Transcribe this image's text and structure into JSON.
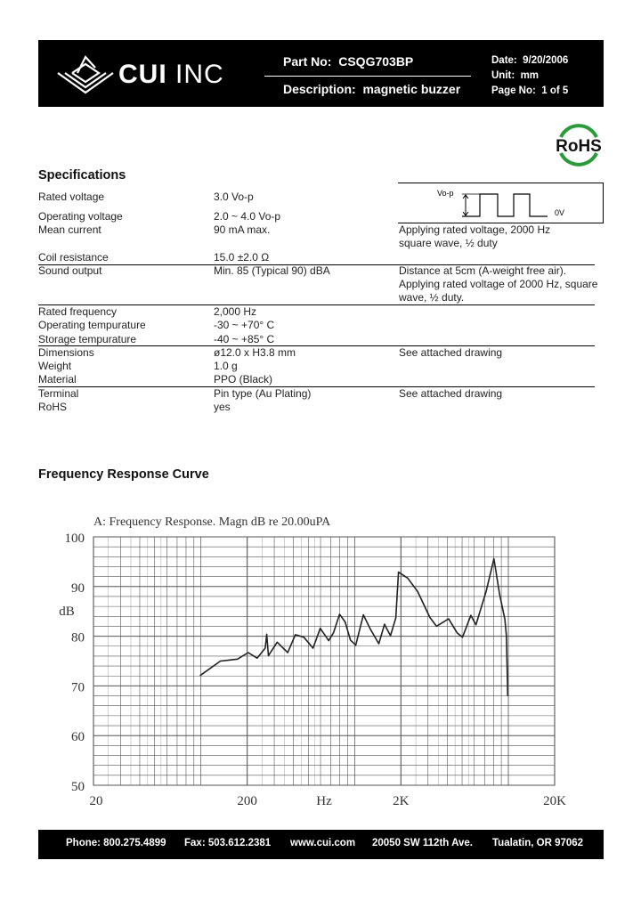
{
  "header": {
    "brand_bold": "CUI",
    "brand_light": "INC",
    "part_no_label": "Part No:",
    "part_no": "CSQG703BP",
    "description_label": "Description:",
    "description": "magnetic buzzer",
    "date_label": "Date:",
    "date": "9/20/2006",
    "unit_label": "Unit:",
    "unit": "mm",
    "page_label": "Page No:",
    "page": "1 of 5"
  },
  "rohs_badge": "RoHS",
  "specs": {
    "title": "Specifications",
    "rows": [
      {
        "name": "Rated voltage",
        "value": "3.0 Vo-p",
        "note": ""
      },
      {
        "name": "Operating voltage",
        "value": "2.0 ~ 4.0 Vo-p",
        "note": ""
      },
      {
        "name": "Mean current",
        "value": "90 mA max.",
        "note": "Applying rated voltage, 2000 Hz",
        "note2": "square wave, ½ duty"
      },
      {
        "name": "Coil resistance",
        "value": "15.0 ±2.0 Ω",
        "note": ""
      },
      {
        "name": "Sound output",
        "value": "Min. 85 (Typical 90) dBA",
        "note": "Distance at 5cm (A-weight free air).",
        "note2": "Applying rated voltage of 2000 Hz, square",
        "note3": "wave, ½ duty."
      },
      {
        "name": "Rated frequency",
        "value": "2,000 Hz",
        "note": ""
      },
      {
        "name": "Operating tempurature",
        "value": "-30 ~ +70° C",
        "note": ""
      },
      {
        "name": "Storage tempurature",
        "value": "-40 ~ +85° C",
        "note": ""
      },
      {
        "name": "Dimensions",
        "value": "ø12.0 x H3.8 mm",
        "note": "See attached drawing"
      },
      {
        "name": "Weight",
        "value": "1.0 g",
        "note": ""
      },
      {
        "name": "Material",
        "value": "PPO (Black)",
        "note": ""
      },
      {
        "name": "Terminal",
        "value": "Pin type (Au Plating)",
        "note": "See attached drawing"
      },
      {
        "name": "RoHS",
        "value": "yes",
        "note": ""
      }
    ],
    "waveform": {
      "top_label": "Vo-p",
      "bottom_label": "0V"
    }
  },
  "frequency_section_title": "Frequency Response Curve",
  "chart_data": {
    "type": "line",
    "title": "A: Frequency Response. Magn dB re 20.00uPA",
    "xlabel": "Hz",
    "ylabel": "dB",
    "xscale": "log",
    "xlim": [
      20,
      20000
    ],
    "ylim": [
      50,
      100
    ],
    "x_ticks": [
      {
        "v": 20,
        "label": "20"
      },
      {
        "v": 200,
        "label": "200"
      },
      {
        "v": 2000,
        "label": "2K"
      },
      {
        "v": 20000,
        "label": "20K"
      }
    ],
    "y_ticks": [
      50,
      60,
      70,
      80,
      90,
      100
    ],
    "grid": true,
    "series": [
      {
        "x": [
          99,
          134,
          173,
          203,
          232,
          262,
          268,
          275,
          313,
          367,
          411,
          467,
          536,
          597,
          678,
          728,
          798,
          866,
          940,
          1017,
          1141,
          1267,
          1436,
          1565,
          1710,
          1853,
          1929,
          2213,
          2570,
          3084,
          3410,
          4086,
          4640,
          5030,
          5700,
          6150,
          7165,
          8060,
          8770,
          9490,
          9710,
          9900
        ],
        "y": [
          72.1,
          75.0,
          75.4,
          76.7,
          75.6,
          77.6,
          80.4,
          76.1,
          78.8,
          76.7,
          80.3,
          79.8,
          77.6,
          81.6,
          79.1,
          80.7,
          84.4,
          82.9,
          79.2,
          78.2,
          84.3,
          81.4,
          78.5,
          82.4,
          80.1,
          83.7,
          92.9,
          91.7,
          89.0,
          83.8,
          82.0,
          83.5,
          80.7,
          79.8,
          84.2,
          82.3,
          89.0,
          95.6,
          88.4,
          83.4,
          80.1,
          68.0
        ]
      }
    ]
  },
  "footer": {
    "phone": "Phone:  800.275.4899",
    "fax": "Fax:  503.612.2381",
    "web": "www.cui.com",
    "address": "20050 SW 112th Ave.",
    "city": "Tualatin, OR 97062"
  }
}
